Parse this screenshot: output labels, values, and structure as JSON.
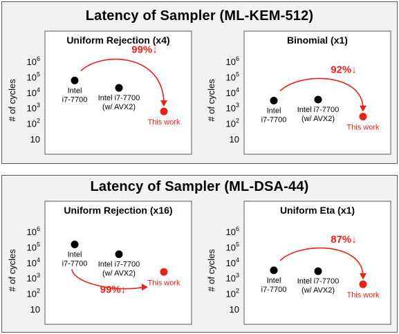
{
  "sections": [
    {
      "title": "Latency of Sampler (ML-KEM-512)"
    },
    {
      "title": "Latency of Sampler (ML-DSA-44)"
    }
  ],
  "colors": {
    "baseline": "#000000",
    "highlight": "#e8211b",
    "panel_bg": "#ffffff",
    "section_bg": "#f2f2f2"
  },
  "chart_data": [
    {
      "type": "scatter",
      "title": "Uniform Rejection (x4)",
      "ylabel": "# of cycles",
      "y_scale": "log",
      "ylim": [
        10,
        1000000
      ],
      "yticks": [
        {
          "base": "10",
          "exp": ""
        },
        {
          "base": "10",
          "exp": "2"
        },
        {
          "base": "10",
          "exp": "3"
        },
        {
          "base": "10",
          "exp": "4"
        },
        {
          "base": "10",
          "exp": "5"
        },
        {
          "base": "10",
          "exp": "6"
        }
      ],
      "points": [
        {
          "label": [
            "Intel",
            "i7-7700"
          ],
          "y": 60000,
          "color": "#000000"
        },
        {
          "label": [
            "Intel i7-7700",
            "(w/ AVX2)"
          ],
          "y": 20000,
          "color": "#000000"
        },
        {
          "label": [
            "This work"
          ],
          "y": 600,
          "color": "#e8211b"
        }
      ],
      "annotation": "99%↓",
      "arrow_direction": "over"
    },
    {
      "type": "scatter",
      "title": "Binomial (x1)",
      "ylabel": "# of cycles",
      "y_scale": "log",
      "ylim": [
        10,
        1000000
      ],
      "yticks": [
        {
          "base": "10",
          "exp": ""
        },
        {
          "base": "10",
          "exp": "2"
        },
        {
          "base": "10",
          "exp": "3"
        },
        {
          "base": "10",
          "exp": "4"
        },
        {
          "base": "10",
          "exp": "5"
        },
        {
          "base": "10",
          "exp": "6"
        }
      ],
      "points": [
        {
          "label": [
            "Intel",
            "i7-7700"
          ],
          "y": 3000,
          "color": "#000000"
        },
        {
          "label": [
            "Intel i7-7700",
            "(w/ AVX2)"
          ],
          "y": 3500,
          "color": "#000000"
        },
        {
          "label": [
            "This work"
          ],
          "y": 280,
          "color": "#e8211b"
        }
      ],
      "annotation": "92%↓",
      "arrow_direction": "over"
    },
    {
      "type": "scatter",
      "title": "Uniform Rejection (x16)",
      "ylabel": "# of cycles",
      "y_scale": "log",
      "ylim": [
        10,
        1000000
      ],
      "yticks": [
        {
          "base": "10",
          "exp": ""
        },
        {
          "base": "10",
          "exp": "2"
        },
        {
          "base": "10",
          "exp": "3"
        },
        {
          "base": "10",
          "exp": "4"
        },
        {
          "base": "10",
          "exp": "5"
        },
        {
          "base": "10",
          "exp": "6"
        }
      ],
      "points": [
        {
          "label": [
            "Intel",
            "i7-7700"
          ],
          "y": 150000,
          "color": "#000000"
        },
        {
          "label": [
            "Intel i7-7700",
            "(w/ AVX2)"
          ],
          "y": 35000,
          "color": "#000000"
        },
        {
          "label": [
            "This work"
          ],
          "y": 2500,
          "color": "#e8211b"
        }
      ],
      "annotation": "99%↓",
      "arrow_direction": "under"
    },
    {
      "type": "scatter",
      "title": "Uniform Eta (x1)",
      "ylabel": "# of cycles",
      "y_scale": "log",
      "ylim": [
        10,
        1000000
      ],
      "yticks": [
        {
          "base": "10",
          "exp": ""
        },
        {
          "base": "10",
          "exp": "2"
        },
        {
          "base": "10",
          "exp": "3"
        },
        {
          "base": "10",
          "exp": "4"
        },
        {
          "base": "10",
          "exp": "5"
        },
        {
          "base": "10",
          "exp": "6"
        }
      ],
      "points": [
        {
          "label": [
            "Intel",
            "i7-7700"
          ],
          "y": 3200,
          "color": "#000000"
        },
        {
          "label": [
            "Intel i7-7700",
            "(w/ AVX2)"
          ],
          "y": 2800,
          "color": "#000000"
        },
        {
          "label": [
            "This work"
          ],
          "y": 400,
          "color": "#e8211b"
        }
      ],
      "annotation": "87%↓",
      "arrow_direction": "over"
    }
  ]
}
